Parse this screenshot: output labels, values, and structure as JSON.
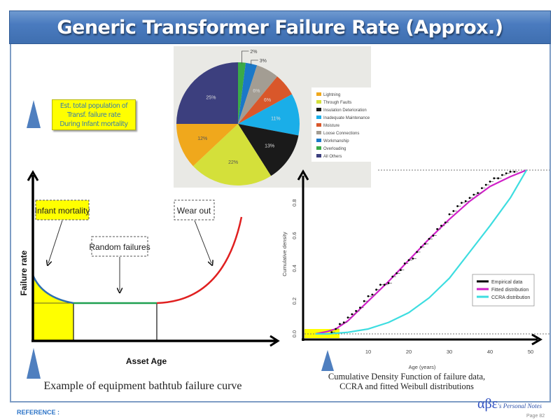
{
  "slide": {
    "title": "Generic Transformer Failure Rate (Approx.)",
    "est_box_lines": [
      "Est. total population of",
      "Transf. failure rate",
      "During Infant mortality"
    ],
    "footer_reference": "REFERENCE :",
    "logo": {
      "symbols": "αβε",
      "text": "'s Personal Notes"
    },
    "page_label": "Page",
    "page_number": "82",
    "accent_color": "#4f7fbf"
  },
  "chart_data": [
    {
      "type": "pie",
      "slices": [
        {
          "label": "Overloading",
          "value": 2,
          "display": "2%",
          "color": "#3aaa48"
        },
        {
          "label": "Workmanship",
          "value": 3,
          "display": "3%",
          "color": "#1a78c8"
        },
        {
          "label": "Loose Connections",
          "value": 6,
          "display": "6%",
          "color": "#a39d93"
        },
        {
          "label": "Moisture",
          "value": 6,
          "display": "6%",
          "color": "#d9572a"
        },
        {
          "label": "Inadequate Maintenance",
          "value": 11,
          "display": "11%",
          "color": "#1aaee8"
        },
        {
          "label": "Insulation Deterioration",
          "value": 13,
          "display": "13%",
          "color": "#1a1a1a"
        },
        {
          "label": "Through Faults",
          "value": 22,
          "display": "22%",
          "color": "#d4e03a"
        },
        {
          "label": "Lightning",
          "value": 12,
          "display": "12%",
          "color": "#f0a81c"
        },
        {
          "label": "All Others",
          "value": 25,
          "display": "25%",
          "color": "#3c3f7e"
        }
      ],
      "legend": [
        "Lightning",
        "Through Faults",
        "Insulation Deterioration",
        "Inadequate Maintenance",
        "Moisture",
        "Loose Connections",
        "Workmanship",
        "Overloading",
        "All Others"
      ],
      "legend_placement": "right"
    },
    {
      "type": "line",
      "xlabel": "Asset Age",
      "ylabel": "Failure rate",
      "caption": "Example of equipment bathtub failure curve",
      "annotations": [
        "Infant mortality",
        "Random failures",
        "Wear out"
      ],
      "segments": [
        {
          "phase": "Infant mortality",
          "color": "#2e6fb0"
        },
        {
          "phase": "Random failures",
          "color": "#1fa050"
        },
        {
          "phase": "Wear out",
          "color": "#e02020"
        }
      ]
    },
    {
      "type": "line",
      "xlabel": "Age (years)",
      "ylabel": "Cumulative density",
      "caption_lines": [
        "Cumulative Density Function of failure data,",
        "CCRA and fitted Weibull distributions"
      ],
      "xlim": [
        -5,
        51
      ],
      "ylim": [
        0,
        1
      ],
      "xticks": [
        "10",
        "20",
        "30",
        "40",
        "50"
      ],
      "yticks": [
        "0.0",
        "0.2",
        "0.4",
        "0.6",
        "0.8"
      ],
      "legend_placement": "right",
      "series": [
        {
          "name": "Empirical data",
          "color": "#000000",
          "type": "step-points",
          "x": [
            1,
            2,
            3,
            4,
            5,
            6,
            7,
            8,
            9,
            10,
            11,
            12,
            13,
            14,
            15,
            16,
            17,
            18,
            19,
            20,
            21,
            22,
            23,
            24,
            25,
            26,
            27,
            28,
            29,
            30,
            31,
            32,
            33,
            34,
            35,
            36,
            37,
            38,
            39,
            40,
            41,
            42,
            43,
            44,
            45,
            46
          ],
          "y": [
            0.01,
            0.03,
            0.06,
            0.07,
            0.1,
            0.12,
            0.14,
            0.16,
            0.2,
            0.23,
            0.24,
            0.27,
            0.3,
            0.3,
            0.31,
            0.35,
            0.37,
            0.39,
            0.43,
            0.45,
            0.46,
            0.5,
            0.53,
            0.55,
            0.58,
            0.6,
            0.64,
            0.66,
            0.68,
            0.73,
            0.75,
            0.78,
            0.8,
            0.81,
            0.83,
            0.85,
            0.86,
            0.89,
            0.91,
            0.93,
            0.95,
            0.95,
            0.97,
            0.98,
            0.99,
            0.99
          ]
        },
        {
          "name": "Fitted distribution",
          "color": "#d020c8",
          "x": [
            -3,
            0,
            2,
            5,
            10,
            15,
            20,
            25,
            30,
            35,
            40,
            45,
            49
          ],
          "y": [
            0,
            0.015,
            0.03,
            0.08,
            0.2,
            0.32,
            0.45,
            0.58,
            0.7,
            0.81,
            0.9,
            0.96,
            1.0
          ]
        },
        {
          "name": "CCRA distribution",
          "color": "#3ddde0",
          "x": [
            -3,
            0,
            5,
            10,
            15,
            20,
            25,
            30,
            35,
            40,
            45,
            49
          ],
          "y": [
            0,
            0,
            0.01,
            0.03,
            0.07,
            0.13,
            0.22,
            0.34,
            0.5,
            0.66,
            0.83,
            1.0
          ]
        }
      ]
    }
  ]
}
